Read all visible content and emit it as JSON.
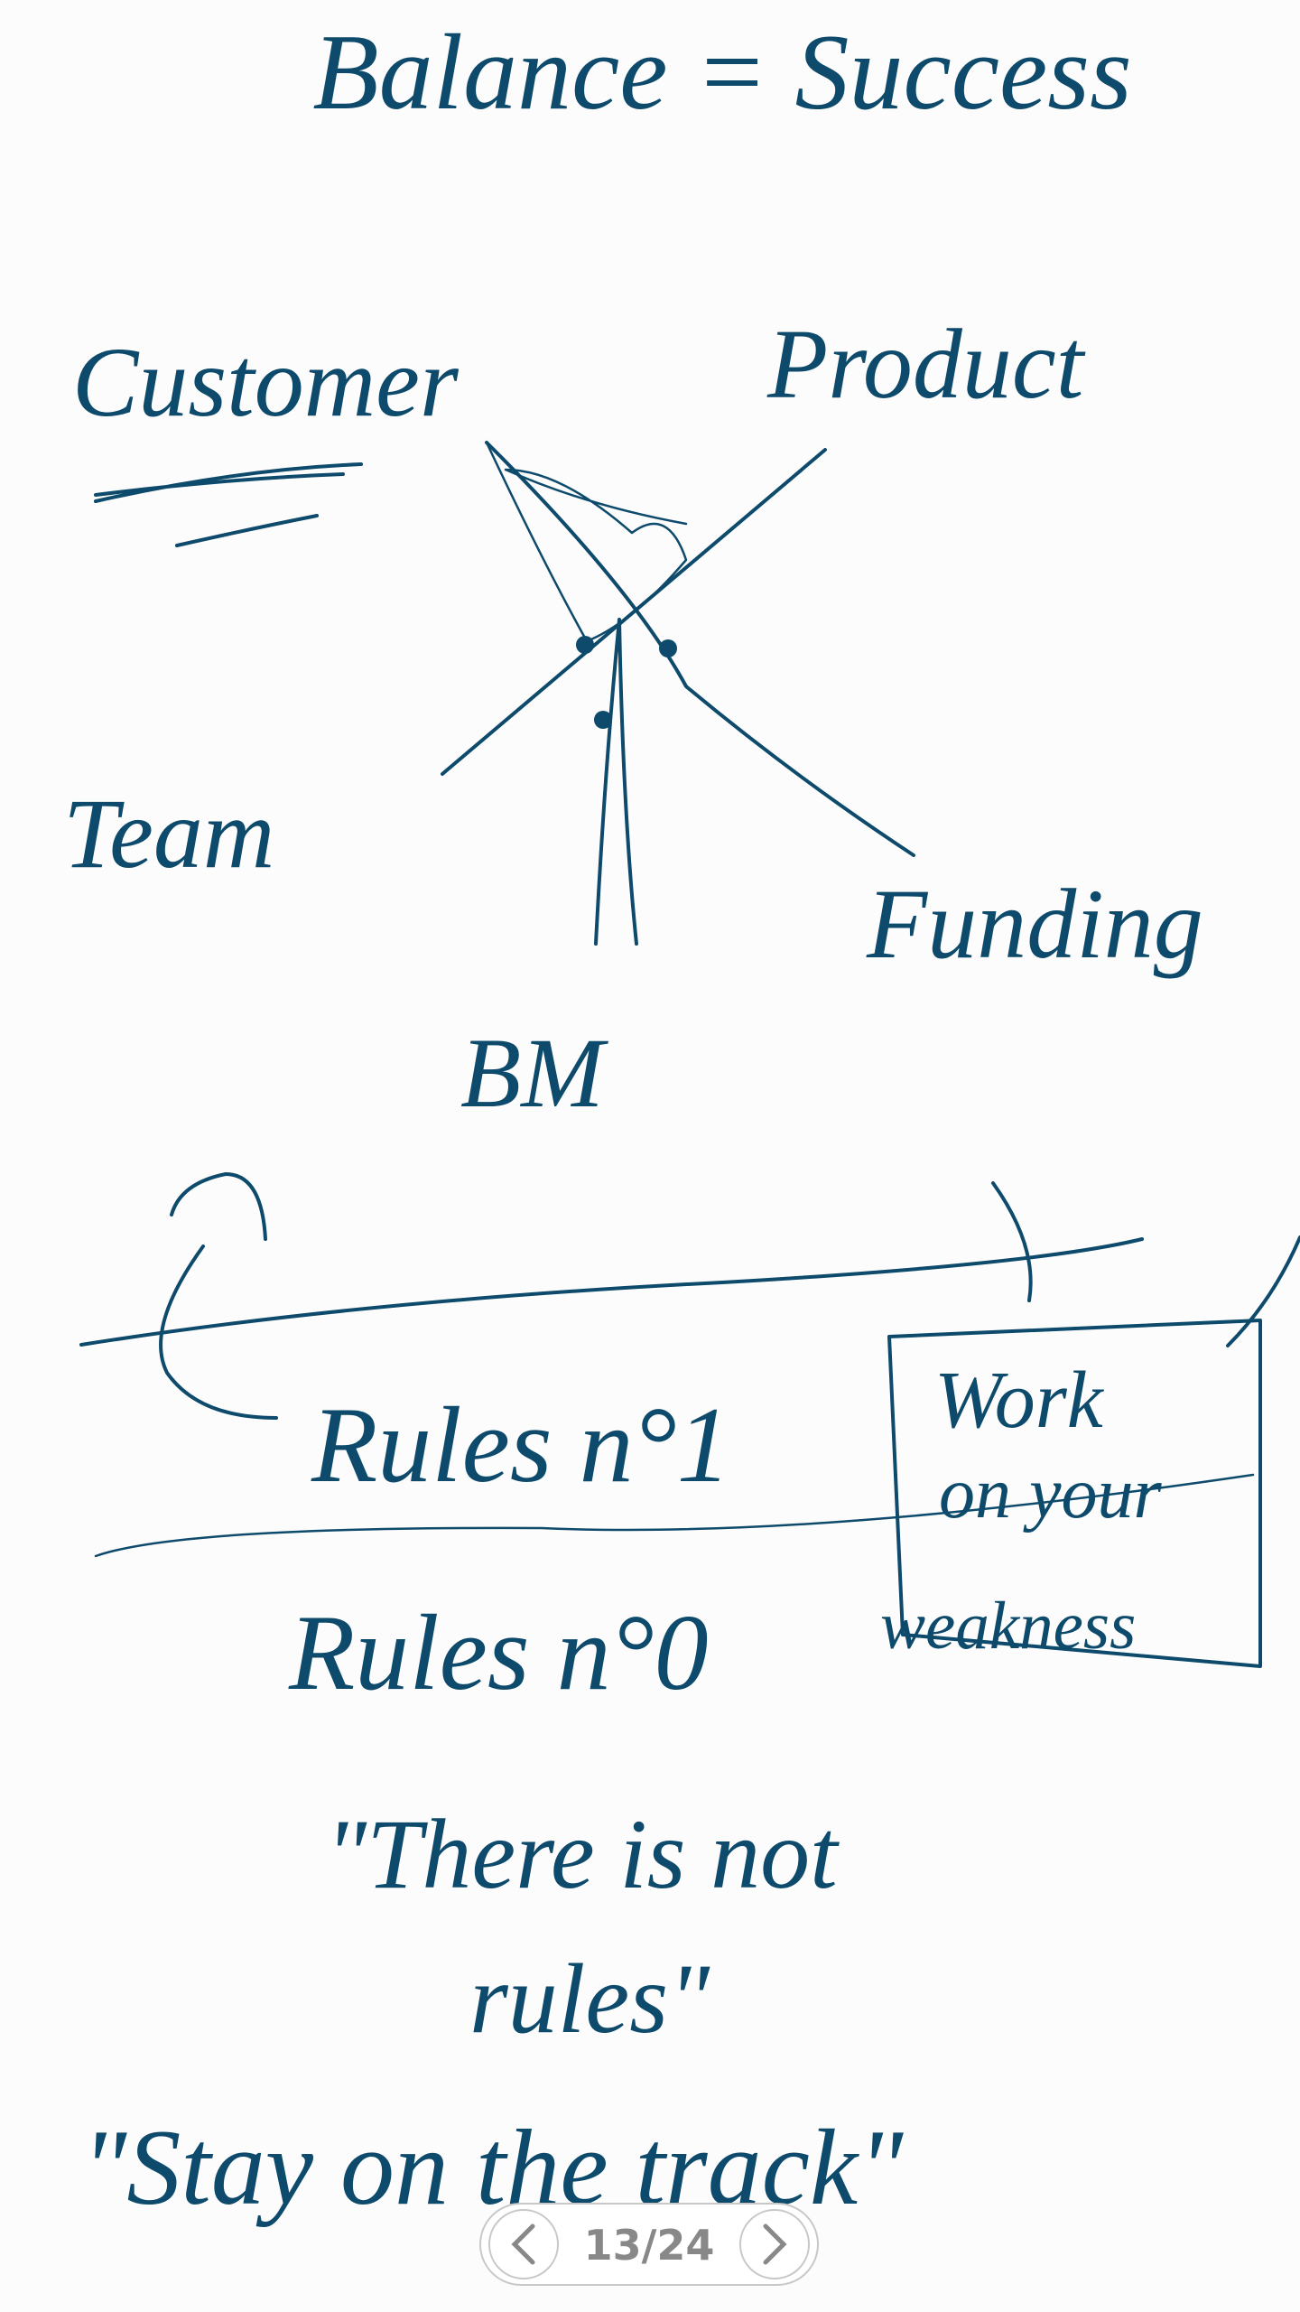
{
  "title": "Balance = Success",
  "nodes": [
    "Customer",
    "Product",
    "Team",
    "Funding",
    "BM"
  ],
  "rules": {
    "rule1": "Rules n°1",
    "box": [
      "Work",
      "on your",
      "weakness"
    ],
    "rule0": "Rules n°0",
    "quote1": "\"There is not",
    "quote1b": "rules\"",
    "quote2": "\"Stay on the track\""
  },
  "pager": {
    "label": "13/24"
  }
}
